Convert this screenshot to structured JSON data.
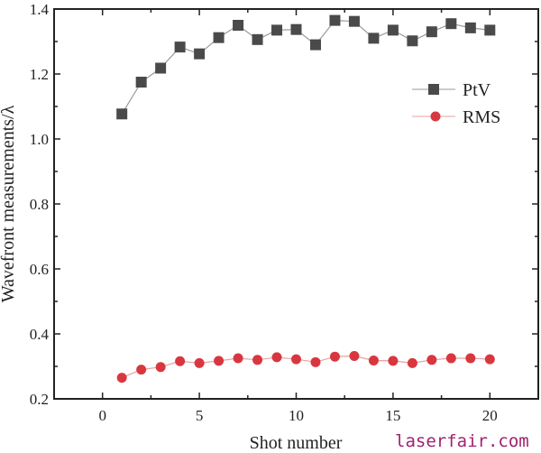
{
  "chart_data": {
    "type": "line",
    "title": "",
    "xlabel": "Shot number",
    "ylabel": "Wavefront measurements/λ",
    "xlim": [
      -2.5,
      22.5
    ],
    "ylim": [
      0.2,
      1.4
    ],
    "xticks": [
      0,
      5,
      10,
      15,
      20
    ],
    "yticks": [
      0.2,
      0.4,
      0.6,
      0.8,
      1.0,
      1.2,
      1.4
    ],
    "ytick_labels": [
      "0.2",
      "0.4",
      "0.6",
      "0.8",
      "1.0",
      "1.2",
      "1.4"
    ],
    "grid": false,
    "legend_placement": "right",
    "x": [
      1,
      2,
      3,
      4,
      5,
      6,
      7,
      8,
      9,
      10,
      11,
      12,
      13,
      14,
      15,
      16,
      17,
      18,
      19,
      20
    ],
    "series": [
      {
        "name": "PtV",
        "marker": "square",
        "color": "#4a4a4a",
        "line_color": "#9a9a9a",
        "values": [
          1.077,
          1.175,
          1.218,
          1.283,
          1.262,
          1.312,
          1.35,
          1.306,
          1.335,
          1.337,
          1.29,
          1.365,
          1.362,
          1.31,
          1.335,
          1.302,
          1.33,
          1.355,
          1.342,
          1.335
        ]
      },
      {
        "name": "RMS",
        "marker": "circle",
        "color": "#d9373f",
        "line_color": "#e8a0a0",
        "values": [
          0.265,
          0.29,
          0.298,
          0.316,
          0.31,
          0.317,
          0.325,
          0.32,
          0.328,
          0.322,
          0.313,
          0.33,
          0.332,
          0.318,
          0.317,
          0.31,
          0.32,
          0.325,
          0.325,
          0.322
        ]
      }
    ]
  },
  "watermark": "laserfair.com"
}
